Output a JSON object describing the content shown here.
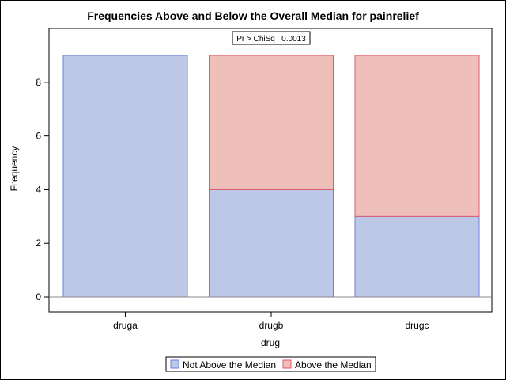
{
  "chart_data": {
    "type": "bar",
    "stacked": true,
    "title": "Frequencies Above and Below the Overall Median for painrelief",
    "xlabel": "drug",
    "ylabel": "Frequency",
    "categories": [
      "druga",
      "drugb",
      "drugc"
    ],
    "series": [
      {
        "name": "Not Above the Median",
        "values": [
          9,
          4,
          3
        ],
        "fill": "#bcc8e6",
        "stroke": "#6b7fe0"
      },
      {
        "name": "Above the Median",
        "values": [
          0,
          5,
          6
        ],
        "fill": "#efbfba",
        "stroke": "#e05a6a"
      }
    ],
    "ylim": [
      0,
      9.8
    ],
    "yticks": [
      0,
      2,
      4,
      6,
      8
    ],
    "ytick_labels": [
      "0",
      "2",
      "4",
      "6",
      "8"
    ],
    "annotation": "Pr > ChiSq   0.0013",
    "legend_position": "bottom",
    "grid": false
  }
}
